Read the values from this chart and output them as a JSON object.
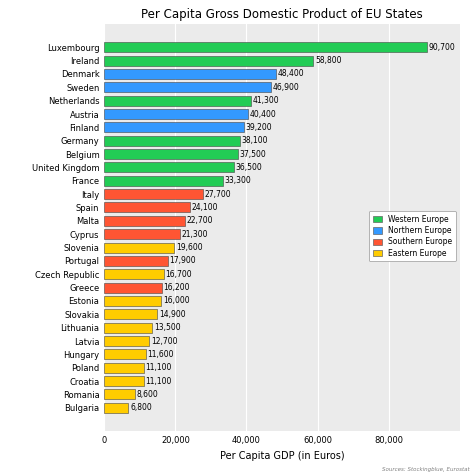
{
  "title": "Per Capita Gross Domestic Product of EU States",
  "xlabel": "Per Capita GDP (in Euros)",
  "source": "Sources: Stockingblue, Eurostat",
  "countries": [
    "Luxembourg",
    "Ireland",
    "Denmark",
    "Sweden",
    "Netherlands",
    "Austria",
    "Finland",
    "Germany",
    "Belgium",
    "United Kingdom",
    "France",
    "Italy",
    "Spain",
    "Malta",
    "Cyprus",
    "Slovenia",
    "Portugal",
    "Czech Republic",
    "Greece",
    "Estonia",
    "Slovakia",
    "Lithuania",
    "Latvia",
    "Hungary",
    "Poland",
    "Croatia",
    "Romania",
    "Bulgaria"
  ],
  "values": [
    90700,
    58800,
    48400,
    46900,
    41300,
    40400,
    39200,
    38100,
    37500,
    36500,
    33300,
    27700,
    24100,
    22700,
    21300,
    19600,
    17900,
    16700,
    16200,
    16000,
    14900,
    13500,
    12700,
    11600,
    11100,
    11100,
    8600,
    6800
  ],
  "regions": [
    "Western Europe",
    "Western Europe",
    "Northern Europe",
    "Northern Europe",
    "Western Europe",
    "Northern Europe",
    "Northern Europe",
    "Western Europe",
    "Western Europe",
    "Western Europe",
    "Western Europe",
    "Southern Europe",
    "Southern Europe",
    "Southern Europe",
    "Southern Europe",
    "Eastern Europe",
    "Southern Europe",
    "Eastern Europe",
    "Southern Europe",
    "Eastern Europe",
    "Eastern Europe",
    "Eastern Europe",
    "Eastern Europe",
    "Eastern Europe",
    "Eastern Europe",
    "Eastern Europe",
    "Eastern Europe",
    "Eastern Europe"
  ],
  "region_colors": {
    "Western Europe": "#22CC55",
    "Northern Europe": "#3399FF",
    "Southern Europe": "#FF5533",
    "Eastern Europe": "#FFCC00"
  },
  "legend_order": [
    "Western Europe",
    "Northern Europe",
    "Southern Europe",
    "Eastern Europe"
  ],
  "xlim": [
    0,
    100000
  ],
  "xticks": [
    0,
    20000,
    40000,
    60000,
    80000
  ],
  "xtick_labels": [
    "0",
    "20,000",
    "40,000",
    "60,000",
    "80,000"
  ],
  "bar_height": 0.75,
  "label_fontsize": 5.5,
  "title_fontsize": 8.5,
  "axis_fontsize": 7,
  "tick_fontsize": 6.0,
  "background_color": "#EBEBEB",
  "bar_edge_color": "#444444",
  "bar_edge_width": 0.4
}
